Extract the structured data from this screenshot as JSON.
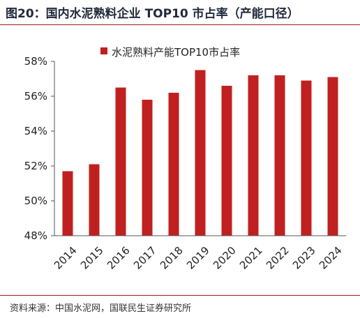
{
  "figure": {
    "title": "图20：国内水泥熟料企业 TOP10 市占率（产能口径）",
    "source": "资料来源：中国水泥网，国联民生证券研究所"
  },
  "colors": {
    "bar": "#c0201f",
    "title": "#1f2a3c",
    "rule": "#9a1c1c"
  },
  "chart_data": {
    "type": "bar",
    "categories": [
      "2014",
      "2015",
      "2016",
      "2017",
      "2018",
      "2019",
      "2020",
      "2021",
      "2022",
      "2023",
      "2024"
    ],
    "series": [
      {
        "name": "水泥熟料产能TOP10市占率",
        "values": [
          51.7,
          52.1,
          56.5,
          55.8,
          56.2,
          57.5,
          56.6,
          57.2,
          57.2,
          56.9,
          57.1
        ]
      }
    ],
    "yticks": [
      "48%",
      "50%",
      "52%",
      "54%",
      "56%",
      "58%"
    ],
    "ylim": [
      48,
      58
    ],
    "yunit": "%",
    "grid": false,
    "legend": "top-center",
    "xtick_rotation": "diagonal"
  }
}
